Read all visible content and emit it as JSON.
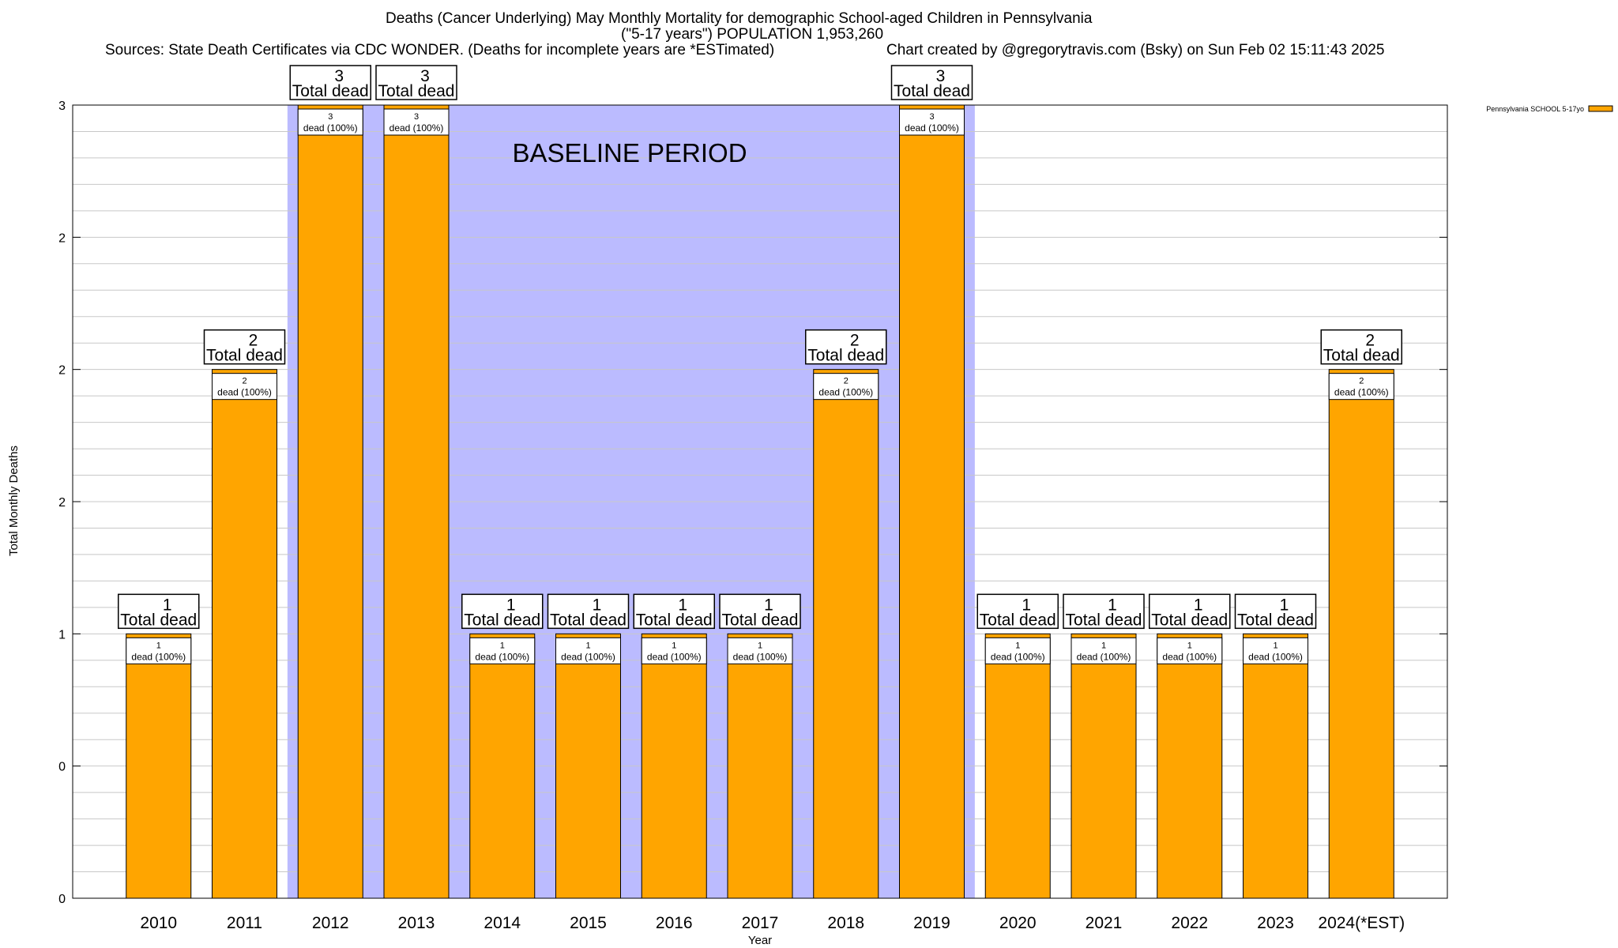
{
  "header": {
    "title": "Deaths (Cancer Underlying) May Monthly Mortality for demographic School-aged Children in Pennsylvania",
    "subtitle": "(\"5-17 years\") POPULATION 1,953,260",
    "sources": "Sources: State Death Certificates via CDC WONDER. (Deaths for incomplete years are *ESTimated)",
    "credit": "Chart created by @gregorytravis.com (Bsky) on Sun Feb 02 15:11:43 2025"
  },
  "colors": {
    "bar": "#ffa500",
    "baseline_shade": "#bbbbff",
    "grid": "#c8c8c8"
  },
  "chart_data": {
    "type": "bar",
    "categories": [
      "2010",
      "2011",
      "2012",
      "2013",
      "2014",
      "2015",
      "2016",
      "2017",
      "2018",
      "2019",
      "2020",
      "2021",
      "2022",
      "2023",
      "2024(*EST)"
    ],
    "series": [
      {
        "name": "Pennsylvania SCHOOL 5-17yo",
        "values": [
          1,
          2,
          3,
          3,
          1,
          1,
          1,
          1,
          2,
          3,
          1,
          1,
          1,
          1,
          2
        ]
      }
    ],
    "xlabel": "Year",
    "ylabel": "Total Monthly Deaths",
    "ylim": [
      0,
      3
    ],
    "y_ticks": [
      {
        "value": 0,
        "label": "0"
      },
      {
        "value": 0.5,
        "label": "0"
      },
      {
        "value": 1,
        "label": "1"
      },
      {
        "value": 1.5,
        "label": "2"
      },
      {
        "value": 2,
        "label": "2"
      },
      {
        "value": 2.5,
        "label": "2"
      },
      {
        "value": 3,
        "label": "3"
      }
    ],
    "grid": true,
    "legend_position": "top-right",
    "top_label_suffix": "Total dead",
    "inner_label_suffix": "dead (100%)",
    "annotation": {
      "text": "BASELINE PERIOD",
      "from": "2012",
      "to": "2019"
    }
  }
}
